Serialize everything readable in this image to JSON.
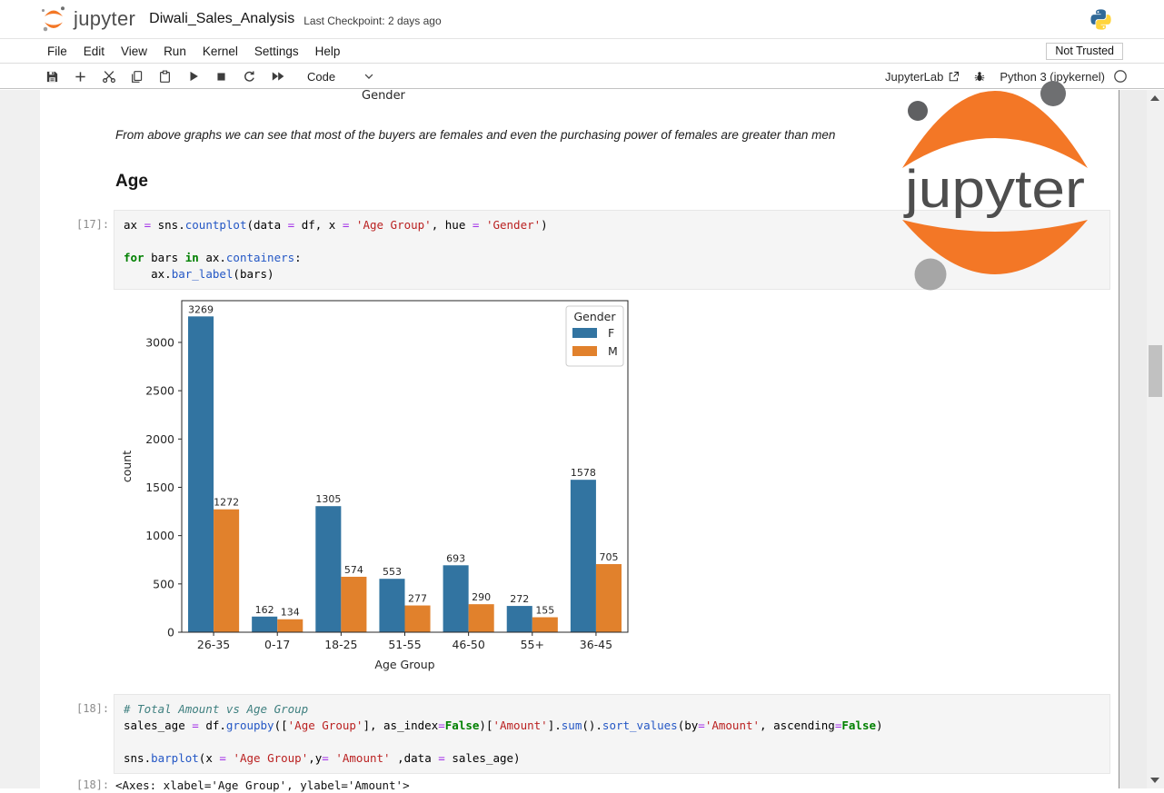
{
  "header": {
    "logo_text": "jupyter",
    "title": "Diwali_Sales_Analysis",
    "checkpoint": "Last Checkpoint: 2 days ago"
  },
  "menu": {
    "items": [
      "File",
      "Edit",
      "View",
      "Run",
      "Kernel",
      "Settings",
      "Help"
    ],
    "trust_badge": "Not Trusted"
  },
  "toolbar": {
    "cell_type": "Code",
    "jupyterlab_label": "JupyterLab",
    "kernel_label": "Python 3 (ipykernel)"
  },
  "notebook": {
    "prev_chart_xlabel": "Gender",
    "markdown_note": "From above graphs we can see that most of the buyers are females and even the purchasing power of females are greater than men",
    "heading": "Age",
    "cells": [
      {
        "prompt": "[17]:",
        "lines": [
          [
            [
              "ax ",
              ""
            ],
            [
              "=",
              "o"
            ],
            [
              " sns.",
              ""
            ],
            [
              "countplot",
              "f"
            ],
            [
              "(data ",
              ""
            ],
            [
              "=",
              "o"
            ],
            [
              " df, x ",
              ""
            ],
            [
              "=",
              "o"
            ],
            [
              " ",
              ""
            ],
            [
              "'Age Group'",
              "s"
            ],
            [
              ", hue ",
              ""
            ],
            [
              "=",
              "o"
            ],
            [
              " ",
              ""
            ],
            [
              "'Gender'",
              "s"
            ],
            [
              ")",
              ""
            ]
          ],
          [],
          [
            [
              "for",
              "k"
            ],
            [
              " bars ",
              ""
            ],
            [
              "in",
              "k"
            ],
            [
              " ax.",
              ""
            ],
            [
              "containers",
              "f"
            ],
            [
              ":",
              ""
            ]
          ],
          [
            [
              "    ax.",
              ""
            ],
            [
              "bar_label",
              "f"
            ],
            [
              "(bars)",
              ""
            ]
          ]
        ]
      },
      {
        "prompt": "[18]:",
        "lines": [
          [
            [
              "# Total Amount vs Age Group",
              "c"
            ]
          ],
          [
            [
              "sales_age ",
              ""
            ],
            [
              "=",
              "o"
            ],
            [
              " df.",
              ""
            ],
            [
              "groupby",
              "f"
            ],
            [
              "([",
              ""
            ],
            [
              "'Age Group'",
              "s"
            ],
            [
              "], as_index",
              ""
            ],
            [
              "=",
              "o"
            ],
            [
              "False",
              "k"
            ],
            [
              ")[",
              ""
            ],
            [
              "'Amount'",
              "s"
            ],
            [
              "].",
              ""
            ],
            [
              "sum",
              "f"
            ],
            [
              "().",
              ""
            ],
            [
              "sort_values",
              "f"
            ],
            [
              "(by",
              ""
            ],
            [
              "=",
              "o"
            ],
            [
              "'Amount'",
              "s"
            ],
            [
              ", ascending",
              ""
            ],
            [
              "=",
              "o"
            ],
            [
              "False",
              "k"
            ],
            [
              ")",
              ""
            ]
          ],
          [],
          [
            [
              "sns.",
              ""
            ],
            [
              "barplot",
              "f"
            ],
            [
              "(x ",
              ""
            ],
            [
              "=",
              "o"
            ],
            [
              " ",
              ""
            ],
            [
              "'Age Group'",
              "s"
            ],
            [
              ",y",
              ""
            ],
            [
              "=",
              "o"
            ],
            [
              " ",
              ""
            ],
            [
              "'Amount'",
              "s"
            ],
            [
              " ,data ",
              ""
            ],
            [
              "=",
              "o"
            ],
            [
              " sales_age)",
              ""
            ]
          ]
        ]
      }
    ],
    "partial_output": {
      "prompt": "[18]:",
      "text": "<Axes: xlabel='Age Group', ylabel='Amount'>"
    }
  },
  "watermark": {
    "text": "jupyter"
  },
  "chart_data": {
    "type": "bar",
    "title": "",
    "categories": [
      "26-35",
      "0-17",
      "18-25",
      "51-55",
      "46-50",
      "55+",
      "36-45"
    ],
    "series": [
      {
        "name": "F",
        "color": "#3274a1",
        "values": [
          3269,
          162,
          1305,
          553,
          693,
          272,
          1578
        ]
      },
      {
        "name": "M",
        "color": "#e1812c",
        "values": [
          1272,
          134,
          574,
          277,
          290,
          155,
          705
        ]
      }
    ],
    "xlabel": "Age Group",
    "ylabel": "count",
    "ylim": [
      0,
      3432
    ],
    "yticks": [
      0,
      500,
      1000,
      1500,
      2000,
      2500,
      3000
    ],
    "legend_title": "Gender",
    "legend_position": "upper right",
    "grid": false
  }
}
